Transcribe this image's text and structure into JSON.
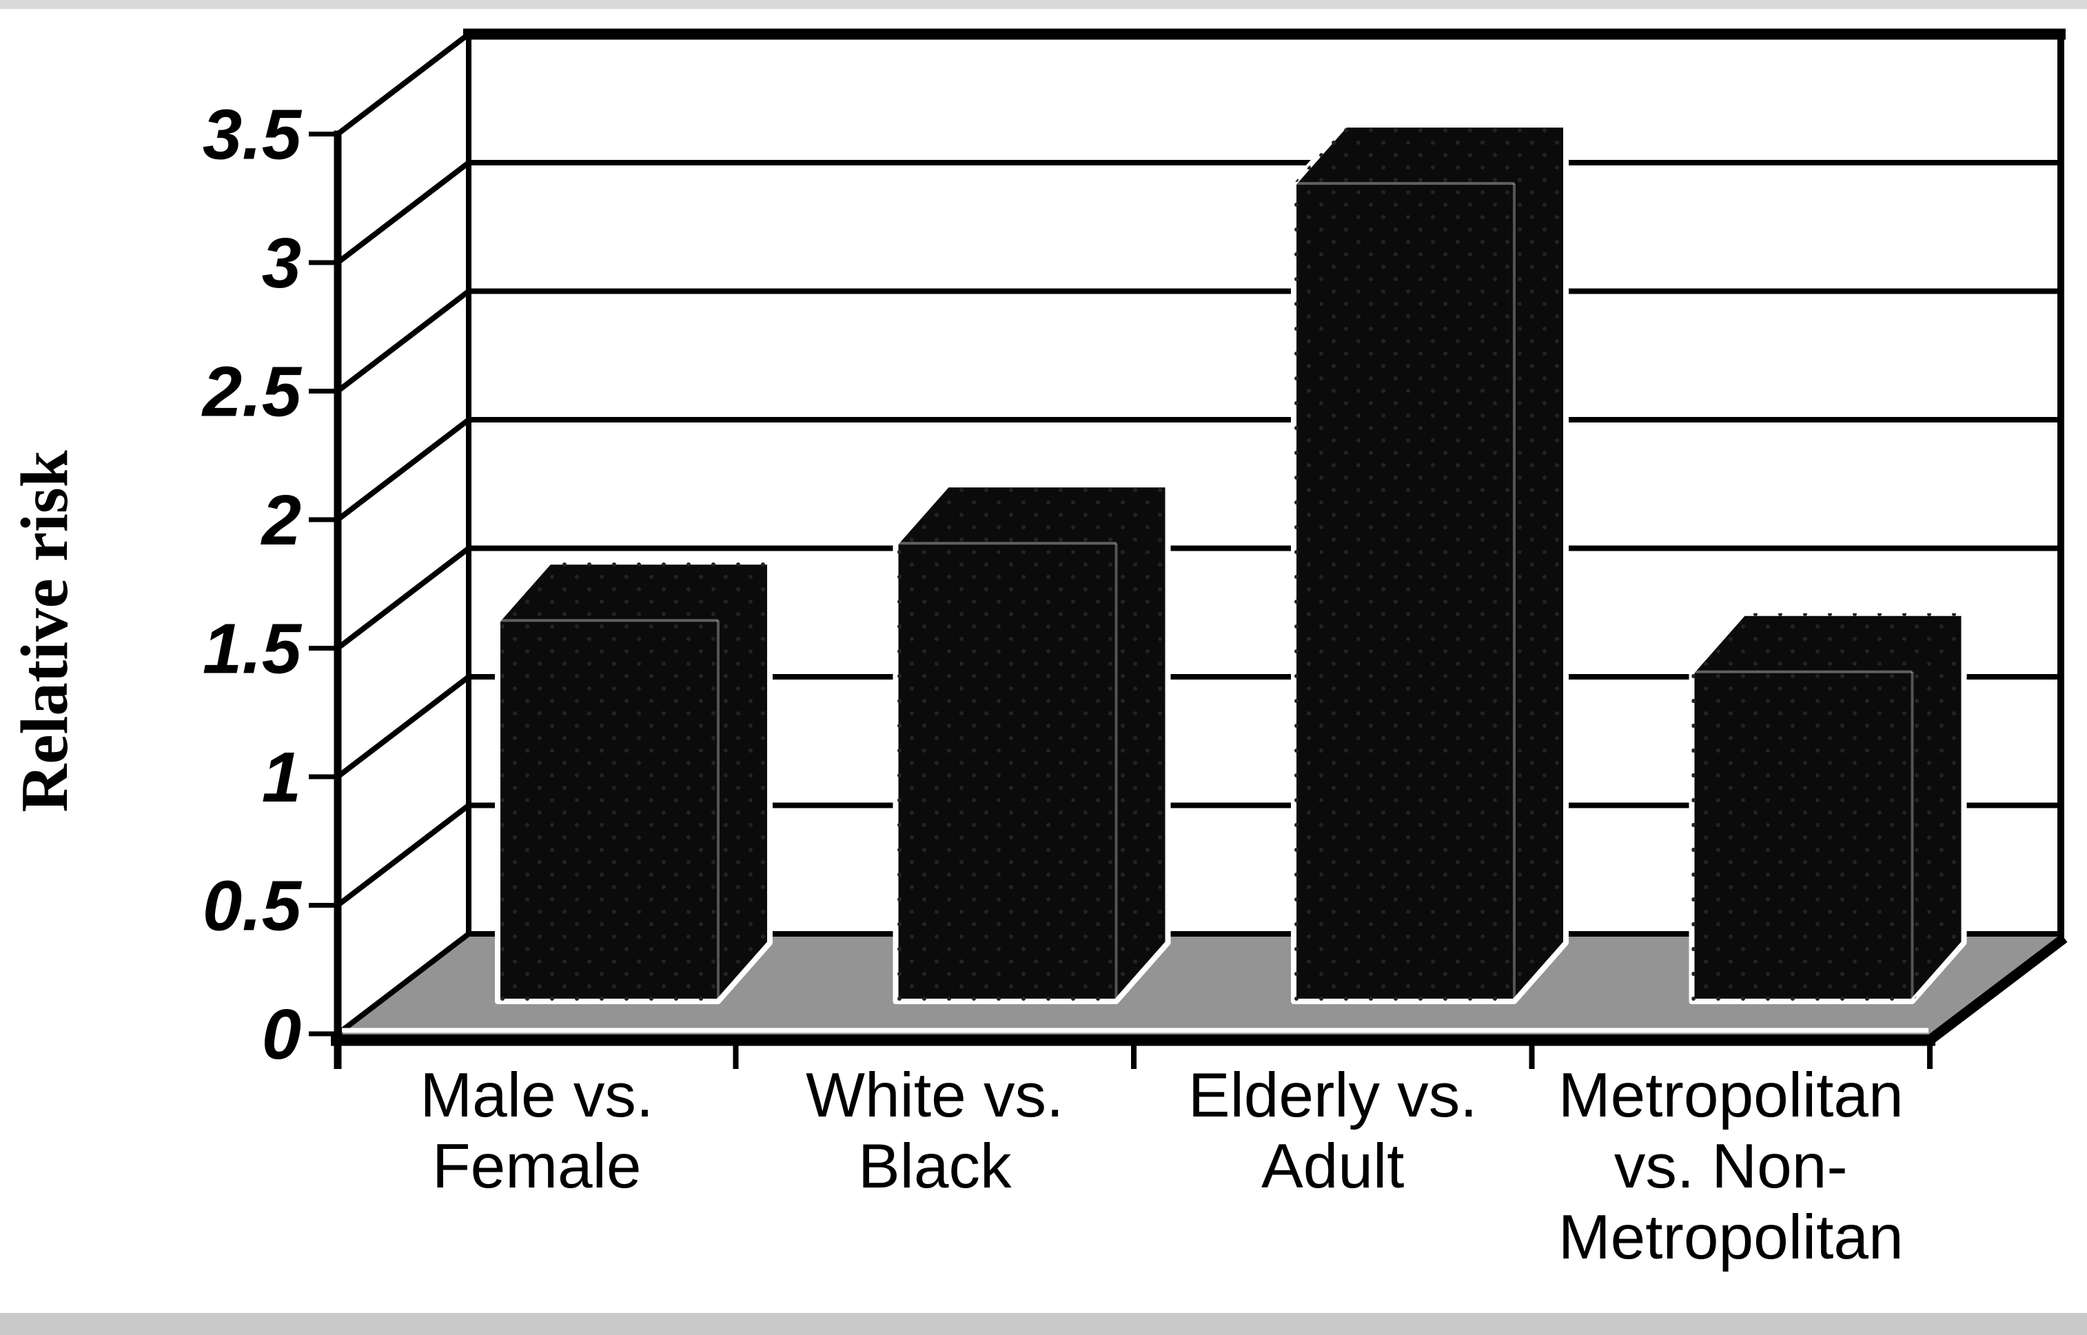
{
  "page": {
    "background": "#ffffff"
  },
  "chart_data": {
    "type": "bar",
    "projection": "3d-oblique-column",
    "title": "",
    "xlabel": "",
    "ylabel": "Relative risk",
    "categories": [
      "Male vs. Female",
      "White vs. Black",
      "Elderly vs. Adult",
      "Metropolitan vs. Non-Metropolitan"
    ],
    "categories_lines": [
      [
        "Male vs.",
        "Female"
      ],
      [
        "White vs.",
        "Black"
      ],
      [
        "Elderly vs.",
        "Adult"
      ],
      [
        "Metropolitan",
        "vs. Non-",
        "Metropolitan"
      ]
    ],
    "values": [
      1.6,
      1.9,
      3.3,
      1.4
    ],
    "ylim": [
      0,
      3.5
    ],
    "ytick_step": 0.5,
    "yticks": [
      {
        "value": 0,
        "label": "0"
      },
      {
        "value": 0.5,
        "label": "0.5"
      },
      {
        "value": 1,
        "label": "1"
      },
      {
        "value": 1.5,
        "label": "1.5"
      },
      {
        "value": 2,
        "label": "2"
      },
      {
        "value": 2.5,
        "label": "2.5"
      },
      {
        "value": 3,
        "label": "3"
      },
      {
        "value": 3.5,
        "label": "3.5"
      }
    ],
    "grid": true,
    "legend": false,
    "colors": {
      "bar": "#0b0b0b",
      "bar_speckle": "#232323",
      "bar_outline": "#ffffff",
      "floor": "#949494",
      "wall": "#ffffff",
      "line": "#000000",
      "text": "#000000",
      "edge_band_top": "#d9d9d9",
      "edge_band_bottom": "#c9c9c9"
    }
  }
}
